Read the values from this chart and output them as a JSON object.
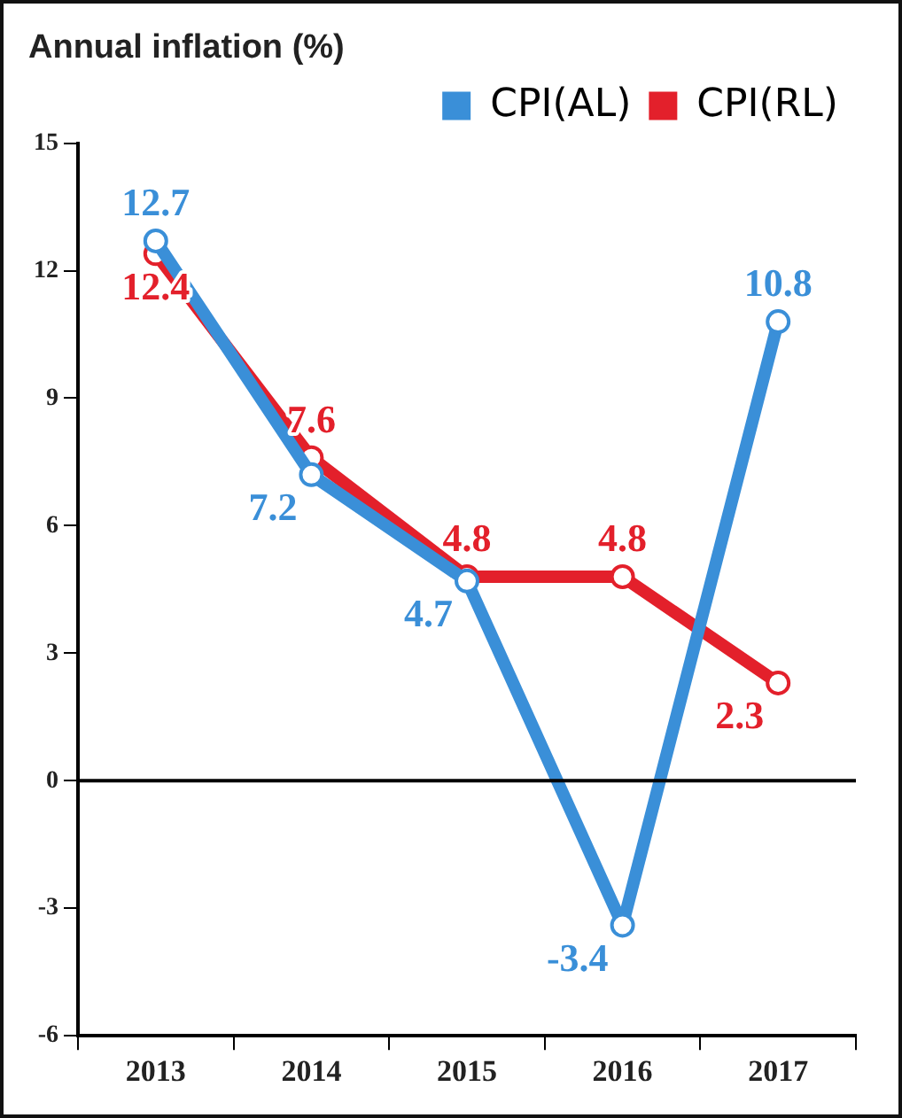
{
  "chart_data": {
    "type": "line",
    "title": "Annual inflation (%)",
    "categories": [
      "2013",
      "2014",
      "2015",
      "2016",
      "2017"
    ],
    "series": [
      {
        "name": "CPI(AL)",
        "color": "#3a8fd8",
        "values": [
          12.7,
          7.2,
          4.7,
          -3.4,
          10.8
        ]
      },
      {
        "name": "CPI(RL)",
        "color": "#e3202b",
        "values": [
          12.4,
          7.6,
          4.8,
          4.8,
          2.3
        ]
      }
    ],
    "ylim": [
      -6,
      15
    ],
    "yticks": [
      -6,
      -3,
      0,
      3,
      6,
      9,
      12,
      15
    ],
    "ref_lines": [
      {
        "axis": "y",
        "value": 0,
        "color": "#000000"
      }
    ],
    "data_labels": true,
    "legend": "top right",
    "marker": "circle",
    "line_style": "solid",
    "grid": false
  }
}
